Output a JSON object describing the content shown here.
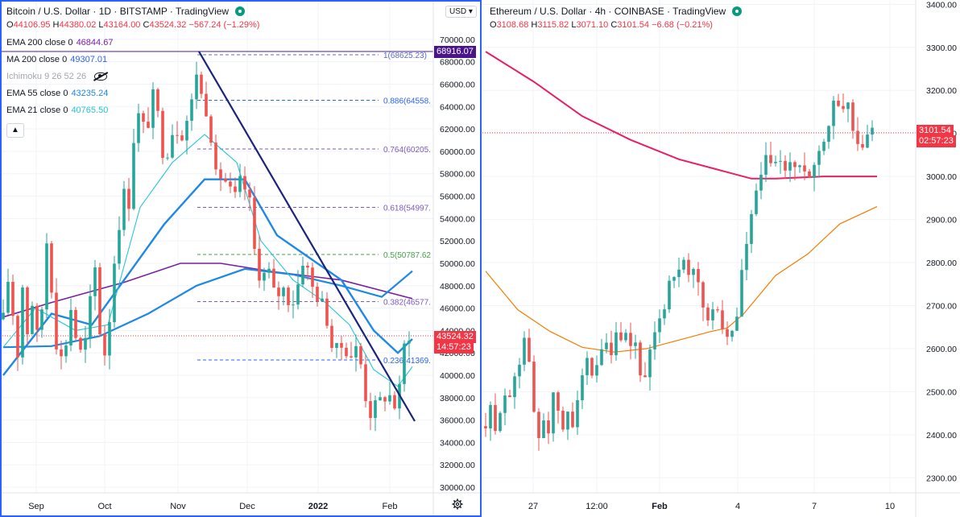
{
  "left_chart": {
    "title": "Bitcoin / U.S. Dollar · 1D · BITSTAMP · TradingView",
    "ohlc": {
      "o": "44106.95",
      "h": "44380.02",
      "l": "43164.00",
      "c": "43524.32",
      "chg": "−567.24 (−1.29%)"
    },
    "indicators": [
      {
        "name": "EMA 200 close 0",
        "value": "46844.67",
        "color": "#7b1fa2"
      },
      {
        "name": "MA 200 close 0",
        "value": "49307.01",
        "color": "#2962ff"
      },
      {
        "name": "Ichimoku 9 26 52 26",
        "value": "",
        "color": "#a3a6af"
      },
      {
        "name": "EMA 55 close 0",
        "value": "43235.24",
        "color": "#1e88e5"
      },
      {
        "name": "EMA 21 close 0",
        "value": "40765.50",
        "color": "#26c6da"
      }
    ],
    "currency_button": "USD",
    "last_price_tag": "43524.32",
    "countdown_tag": "14:57:23",
    "high_tag": "68916.07",
    "price_ticks": [
      "70000.00",
      "68000.00",
      "66000.00",
      "64000.00",
      "62000.00",
      "60000.00",
      "58000.00",
      "56000.00",
      "54000.00",
      "52000.00",
      "50000.00",
      "48000.00",
      "46000.00",
      "44000.00",
      "42000.00",
      "40000.00",
      "38000.00",
      "36000.00",
      "34000.00",
      "32000.00",
      "30000.00"
    ],
    "x_ticks": [
      "Sep",
      "Oct",
      "Nov",
      "Dec",
      "2022",
      "Feb"
    ],
    "fib_labels": [
      {
        "label": "1(68625.23)",
        "color": "#5c6bc0"
      },
      {
        "label": "0.886(64558.",
        "color": "#2962ff"
      },
      {
        "label": "0.764(60205.",
        "color": "#7e57c2"
      },
      {
        "label": "0.618(54997.",
        "color": "#7e57c2"
      },
      {
        "label": "0.5(50787.62",
        "color": "#43a047"
      },
      {
        "label": "0.382(46577.",
        "color": "#7e57c2"
      },
      {
        "label": "0.236(41369.",
        "color": "#2962ff"
      }
    ]
  },
  "right_chart": {
    "title": "Ethereum / U.S. Dollar · 4h · COINBASE · TradingView",
    "ohlc": {
      "o": "3108.68",
      "h": "3115.82",
      "l": "3071.10",
      "c": "3101.54",
      "chg": "−6.68 (−0.21%)"
    },
    "last_price_tag": "3101.54",
    "countdown_tag": "02:57:23",
    "price_ticks": [
      "3400.00",
      "3300.00",
      "3200.00",
      "3100.00",
      "3000.00",
      "2900.00",
      "2800.00",
      "2700.00",
      "2600.00",
      "2500.00",
      "2400.00",
      "2300.00"
    ],
    "x_ticks": [
      "27",
      "12:00",
      "Feb",
      "4",
      "7",
      "10"
    ]
  },
  "chart_data": [
    {
      "type": "candlestick",
      "title": "Bitcoin / U.S. Dollar · 1D · BITSTAMP",
      "ylim": [
        29500,
        71500
      ],
      "x_categories": [
        "Sep",
        "Oct",
        "Nov",
        "Dec",
        "2022",
        "Feb"
      ],
      "path_anchors": [
        [
          0,
          45000
        ],
        [
          6,
          48500
        ],
        [
          12,
          45500
        ],
        [
          18,
          42000
        ],
        [
          24,
          48000
        ],
        [
          30,
          44000
        ],
        [
          36,
          46500
        ],
        [
          42,
          43500
        ],
        [
          48,
          46000
        ],
        [
          54,
          52000
        ],
        [
          60,
          48000
        ],
        [
          66,
          43000
        ],
        [
          72,
          41500
        ],
        [
          78,
          43000
        ],
        [
          84,
          46000
        ],
        [
          90,
          43500
        ],
        [
          96,
          42000
        ],
        [
          102,
          43000
        ],
        [
          108,
          46500
        ],
        [
          114,
          49500
        ],
        [
          120,
          44000
        ],
        [
          126,
          42000
        ],
        [
          130,
          43500
        ],
        [
          136,
          48500
        ],
        [
          140,
          52000
        ],
        [
          146,
          54500
        ],
        [
          152,
          57000
        ],
        [
          156,
          55500
        ],
        [
          160,
          60000
        ],
        [
          166,
          63500
        ],
        [
          172,
          62500
        ],
        [
          178,
          61500
        ],
        [
          184,
          65000
        ],
        [
          190,
          64500
        ],
        [
          196,
          60500
        ],
        [
          202,
          59500
        ],
        [
          208,
          61500
        ],
        [
          214,
          62500
        ],
        [
          220,
          61000
        ],
        [
          226,
          63000
        ],
        [
          232,
          62500
        ],
        [
          238,
          68000
        ],
        [
          244,
          65500
        ],
        [
          250,
          64000
        ],
        [
          256,
          63500
        ],
        [
          262,
          57500
        ],
        [
          268,
          58000
        ],
        [
          274,
          57500
        ],
        [
          280,
          57000
        ],
        [
          286,
          55000
        ],
        [
          292,
          57500
        ],
        [
          298,
          56500
        ],
        [
          304,
          57000
        ],
        [
          310,
          52000
        ],
        [
          316,
          49500
        ],
        [
          322,
          48500
        ],
        [
          328,
          50000
        ],
        [
          334,
          47500
        ],
        [
          340,
          47000
        ],
        [
          346,
          48000
        ],
        [
          352,
          47000
        ],
        [
          358,
          46500
        ],
        [
          364,
          47000
        ],
        [
          370,
          50500
        ],
        [
          376,
          50000
        ],
        [
          382,
          48000
        ],
        [
          388,
          47500
        ],
        [
          394,
          46500
        ],
        [
          400,
          46000
        ],
        [
          406,
          43000
        ],
        [
          412,
          42000
        ],
        [
          418,
          42500
        ],
        [
          424,
          42800
        ],
        [
          430,
          41500
        ],
        [
          436,
          42500
        ],
        [
          442,
          42000
        ],
        [
          448,
          39000
        ],
        [
          454,
          36500
        ],
        [
          460,
          37000
        ],
        [
          466,
          37500
        ],
        [
          472,
          38000
        ],
        [
          478,
          38500
        ],
        [
          484,
          37500
        ],
        [
          490,
          37000
        ],
        [
          496,
          42000
        ],
        [
          502,
          43800
        ],
        [
          508,
          43524
        ]
      ],
      "series": [
        {
          "name": "EMA 200 close 0",
          "points": [
            [
              0,
              45200
            ],
            [
              60,
              46500
            ],
            [
              150,
              48300
            ],
            [
              220,
              50000
            ],
            [
              270,
              50000
            ],
            [
              330,
              49300
            ],
            [
              420,
              48500
            ],
            [
              508,
              46845
            ]
          ]
        },
        {
          "name": "MA 200 close 0",
          "points": [
            [
              0,
              42500
            ],
            [
              60,
              42600
            ],
            [
              120,
              43500
            ],
            [
              180,
              45500
            ],
            [
              240,
              48000
            ],
            [
              300,
              49500
            ],
            [
              360,
              49000
            ],
            [
              420,
              48000
            ],
            [
              470,
              47000
            ],
            [
              508,
              49307
            ]
          ]
        },
        {
          "name": "EMA 55 close 0",
          "points": [
            [
              0,
              40000
            ],
            [
              60,
              45500
            ],
            [
              110,
              44500
            ],
            [
              150,
              48500
            ],
            [
              200,
              53500
            ],
            [
              250,
              57500
            ],
            [
              300,
              57500
            ],
            [
              340,
              52500
            ],
            [
              380,
              50500
            ],
            [
              420,
              48500
            ],
            [
              460,
              44000
            ],
            [
              490,
              42000
            ],
            [
              508,
              43235
            ]
          ]
        },
        {
          "name": "EMA 21 close 0",
          "points": [
            [
              0,
              42500
            ],
            [
              40,
              46000
            ],
            [
              90,
              44000
            ],
            [
              130,
              44500
            ],
            [
              170,
              55000
            ],
            [
              210,
              59000
            ],
            [
              250,
              61500
            ],
            [
              290,
              59000
            ],
            [
              320,
              52000
            ],
            [
              360,
              48500
            ],
            [
              400,
              46500
            ],
            [
              430,
              44500
            ],
            [
              460,
              40500
            ],
            [
              490,
              39000
            ],
            [
              508,
              40766
            ]
          ]
        }
      ],
      "fibonacci_levels": [
        {
          "ratio": "1",
          "price": 68625.23
        },
        {
          "ratio": "0.886",
          "price": 64558
        },
        {
          "ratio": "0.764",
          "price": 60205
        },
        {
          "ratio": "0.618",
          "price": 54997
        },
        {
          "ratio": "0.5",
          "price": 50787.62
        },
        {
          "ratio": "0.382",
          "price": 46577
        },
        {
          "ratio": "0.236",
          "price": 41369
        }
      ],
      "trendline": [
        [
          247,
          68916
        ],
        [
          515,
          35900
        ]
      ],
      "last_price": 43524.32,
      "high": 68916.07
    },
    {
      "type": "candlestick",
      "title": "Ethereum / U.S. Dollar · 4h · COINBASE",
      "ylim": [
        2265,
        3410
      ],
      "x_categories": [
        "27",
        "12:00",
        "Feb",
        "4",
        "7",
        "10"
      ],
      "path_anchors": [
        [
          0,
          2420
        ],
        [
          6,
          2450
        ],
        [
          12,
          2400
        ],
        [
          18,
          2470
        ],
        [
          24,
          2500
        ],
        [
          30,
          2470
        ],
        [
          36,
          2540
        ],
        [
          42,
          2580
        ],
        [
          48,
          2630
        ],
        [
          54,
          2560
        ],
        [
          60,
          2450
        ],
        [
          66,
          2400
        ],
        [
          72,
          2440
        ],
        [
          78,
          2420
        ],
        [
          84,
          2480
        ],
        [
          90,
          2460
        ],
        [
          96,
          2400
        ],
        [
          102,
          2450
        ],
        [
          108,
          2430
        ],
        [
          114,
          2500
        ],
        [
          120,
          2540
        ],
        [
          126,
          2560
        ],
        [
          132,
          2520
        ],
        [
          138,
          2550
        ],
        [
          144,
          2580
        ],
        [
          150,
          2600
        ],
        [
          156,
          2570
        ],
        [
          162,
          2640
        ],
        [
          168,
          2600
        ],
        [
          174,
          2620
        ],
        [
          180,
          2600
        ],
        [
          186,
          2610
        ],
        [
          192,
          2550
        ],
        [
          198,
          2520
        ],
        [
          204,
          2580
        ],
        [
          210,
          2620
        ],
        [
          216,
          2680
        ],
        [
          222,
          2700
        ],
        [
          228,
          2760
        ],
        [
          234,
          2780
        ],
        [
          240,
          2770
        ],
        [
          246,
          2790
        ],
        [
          252,
          2760
        ],
        [
          258,
          2770
        ],
        [
          264,
          2750
        ],
        [
          270,
          2700
        ],
        [
          276,
          2660
        ],
        [
          282,
          2680
        ],
        [
          288,
          2700
        ],
        [
          294,
          2650
        ],
        [
          300,
          2620
        ],
        [
          306,
          2640
        ],
        [
          312,
          2680
        ],
        [
          318,
          2780
        ],
        [
          324,
          2840
        ],
        [
          330,
          2900
        ],
        [
          336,
          2960
        ],
        [
          342,
          3000
        ],
        [
          348,
          3030
        ],
        [
          354,
          3040
        ],
        [
          360,
          3020
        ],
        [
          366,
          3050
        ],
        [
          372,
          3010
        ],
        [
          378,
          3030
        ],
        [
          384,
          3020
        ],
        [
          390,
          3010
        ],
        [
          396,
          3030
        ],
        [
          402,
          3000
        ],
        [
          408,
          3030
        ],
        [
          414,
          3060
        ],
        [
          420,
          3100
        ],
        [
          426,
          3120
        ],
        [
          432,
          3190
        ],
        [
          438,
          3160
        ],
        [
          444,
          3170
        ],
        [
          450,
          3180
        ],
        [
          456,
          3110
        ],
        [
          462,
          3060
        ],
        [
          468,
          3080
        ],
        [
          474,
          3090
        ],
        [
          480,
          3100
        ],
        [
          486,
          3101.54
        ]
      ],
      "series": [
        {
          "name": "MA (red)",
          "points": [
            [
              0,
              3290
            ],
            [
              60,
              3220
            ],
            [
              120,
              3140
            ],
            [
              180,
              3085
            ],
            [
              240,
              3040
            ],
            [
              300,
              3010
            ],
            [
              330,
              2995
            ],
            [
              360,
              2995
            ],
            [
              420,
              3000
            ],
            [
              486,
              3000
            ]
          ]
        },
        {
          "name": "MA (orange)",
          "points": [
            [
              0,
              2780
            ],
            [
              40,
              2690
            ],
            [
              80,
              2640
            ],
            [
              120,
              2603
            ],
            [
              160,
              2592
            ],
            [
              200,
              2600
            ],
            [
              240,
              2620
            ],
            [
              280,
              2640
            ],
            [
              300,
              2648
            ],
            [
              320,
              2680
            ],
            [
              360,
              2770
            ],
            [
              400,
              2820
            ],
            [
              440,
              2890
            ],
            [
              486,
              2930
            ]
          ]
        }
      ],
      "last_price": 3101.54
    }
  ]
}
